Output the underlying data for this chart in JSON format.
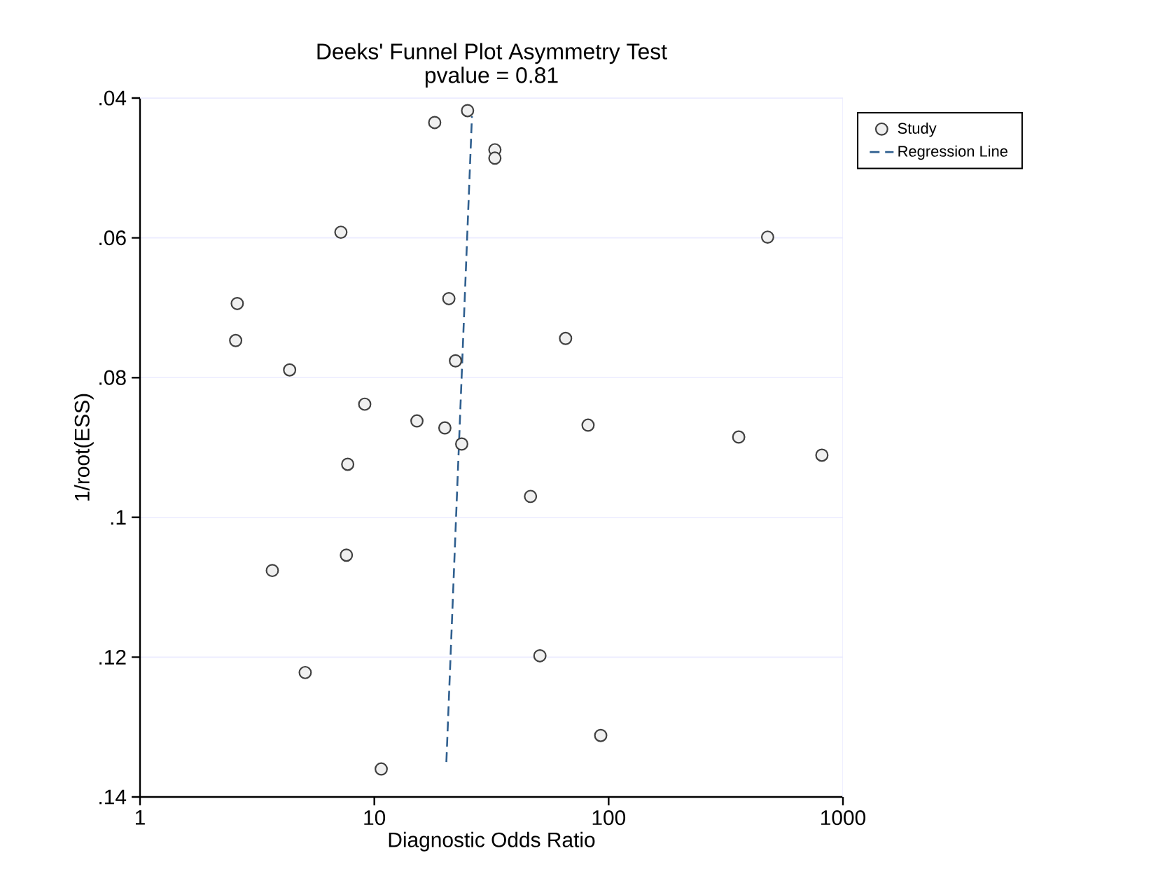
{
  "chart_data": {
    "type": "scatter",
    "title": "Deeks' Funnel Plot Asymmetry Test",
    "subtitle": "pvalue  =   0.81",
    "xlabel": "Diagnostic Odds Ratio",
    "ylabel": "1/root(ESS)",
    "log": "x",
    "xlim": [
      1,
      1000
    ],
    "xticks": [
      1,
      10,
      100,
      1000
    ],
    "ylim": [
      0.14,
      0.04
    ],
    "yticks": [
      {
        "value": 0.04,
        "label": ".04"
      },
      {
        "value": 0.06,
        "label": ".06"
      },
      {
        "value": 0.08,
        "label": ".08"
      },
      {
        "value": 0.1,
        "label": ".1"
      },
      {
        "value": 0.12,
        "label": ".12"
      },
      {
        "value": 0.14,
        "label": ".14"
      }
    ],
    "grid": "y",
    "legend": "right",
    "series": [
      {
        "name": "Study",
        "type": "scatter",
        "color": "#404040",
        "marker": "circle",
        "x": [
          25,
          18.1,
          32.7,
          32.7,
          7.2,
          2.6,
          2.56,
          4.35,
          20.8,
          22.2,
          9.1,
          15.2,
          20,
          23.6,
          7.7,
          477,
          65.5,
          81.7,
          359,
          813,
          46.4,
          3.67,
          7.6,
          5.07,
          10.7,
          50.9,
          92.5
        ],
        "values": [
          0.0418,
          0.0435,
          0.0474,
          0.0486,
          0.0592,
          0.0694,
          0.0747,
          0.0789,
          0.0687,
          0.0776,
          0.0838,
          0.0862,
          0.0872,
          0.0895,
          0.0924,
          0.0599,
          0.0744,
          0.0868,
          0.0885,
          0.0911,
          0.097,
          0.1076,
          0.1054,
          0.1222,
          0.136,
          0.1198,
          0.1312
        ]
      },
      {
        "name": "Regression Line",
        "type": "line",
        "color": "#2f5f8f",
        "line_style": "dashed",
        "marker": "none",
        "x": [
          20.3,
          26.1
        ],
        "values": [
          0.135,
          0.0426
        ]
      }
    ]
  }
}
